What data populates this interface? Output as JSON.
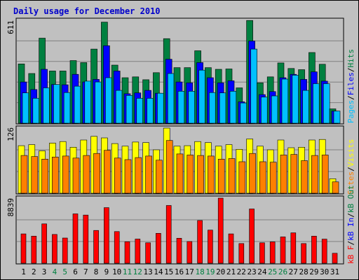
{
  "title": "Daily usage for December 2010",
  "colors": {
    "background": "#c0c0c0",
    "hits": "#008040",
    "files": "#0000ff",
    "pages": "#00c0ff",
    "visits": "#ffff00",
    "sites": "#ff8000",
    "kbin": "#ff0000",
    "kbout": "#0000ff",
    "weekend": "#008040",
    "weekday": "#000000"
  },
  "chart_data": [
    {
      "type": "bar",
      "panel": "hits",
      "ymax_label": "611",
      "ylim": [
        0,
        611
      ],
      "categories": [
        "1",
        "2",
        "3",
        "4",
        "5",
        "6",
        "7",
        "8",
        "9",
        "10",
        "11",
        "12",
        "13",
        "14",
        "15",
        "16",
        "17",
        "18",
        "19",
        "20",
        "21",
        "22",
        "23",
        "24",
        "25",
        "26",
        "27",
        "28",
        "29",
        "30",
        "31"
      ],
      "weekend_days": [
        "4",
        "5",
        "11",
        "12",
        "18",
        "19",
        "25",
        "26"
      ],
      "legend": [
        "Hits",
        "Files",
        "Pages"
      ],
      "series": [
        {
          "name": "Hits",
          "values": [
            352,
            295,
            505,
            310,
            310,
            372,
            360,
            440,
            600,
            345,
            270,
            275,
            258,
            300,
            502,
            330,
            330,
            430,
            330,
            320,
            322,
            210,
            610,
            240,
            275,
            358,
            325,
            318,
            420,
            350,
            85
          ]
        },
        {
          "name": "Files",
          "values": [
            245,
            200,
            320,
            230,
            228,
            290,
            245,
            260,
            460,
            310,
            175,
            180,
            195,
            178,
            380,
            245,
            240,
            360,
            270,
            240,
            252,
            127,
            488,
            170,
            188,
            270,
            290,
            260,
            305,
            250,
            72
          ]
        },
        {
          "name": "Pages",
          "values": [
            180,
            148,
            210,
            230,
            182,
            220,
            250,
            245,
            270,
            195,
            165,
            148,
            148,
            178,
            295,
            190,
            190,
            315,
            182,
            180,
            190,
            120,
            440,
            155,
            162,
            262,
            285,
            195,
            235,
            235,
            72
          ]
        }
      ]
    },
    {
      "type": "bar",
      "panel": "visits",
      "ymax_label": "126",
      "ylim": [
        0,
        126
      ],
      "legend": [
        "Visits",
        "Sites"
      ],
      "series": [
        {
          "name": "Visits",
          "values": [
            92,
            94,
            82,
            97,
            100,
            89,
            103,
            110,
            107,
            96,
            91,
            99,
            98,
            84,
            126,
            91,
            92,
            100,
            98,
            91,
            94,
            85,
            105,
            91,
            84,
            103,
            88,
            89,
            103,
            104,
            28
          ]
        },
        {
          "name": "Sites",
          "values": [
            73,
            71,
            66,
            70,
            72,
            68,
            73,
            77,
            83,
            68,
            65,
            69,
            72,
            64,
            102,
            76,
            74,
            73,
            72,
            66,
            67,
            61,
            77,
            61,
            60,
            74,
            75,
            63,
            73,
            74,
            22
          ]
        }
      ]
    },
    {
      "type": "bar",
      "panel": "kbytes",
      "ymax_label": "8839",
      "ylim": [
        0,
        8839
      ],
      "legend": [
        "KBytes",
        "In",
        "KBytes",
        "Out"
      ],
      "series": [
        {
          "name": "KBytes In",
          "values": [
            0,
            0,
            0,
            0,
            0,
            0,
            0,
            0,
            0,
            0,
            0,
            0,
            0,
            0,
            0,
            0,
            0,
            0,
            0,
            0,
            0,
            0,
            0,
            0,
            0,
            0,
            0,
            0,
            0,
            0,
            0
          ]
        },
        {
          "name": "KBytes Out",
          "values": [
            3986,
            3679,
            5341,
            3909,
            3424,
            6702,
            6539,
            4447,
            7551,
            4292,
            2916,
            3282,
            2773,
            4063,
            7837,
            3394,
            2943,
            5802,
            4498,
            8839,
            3986,
            2671,
            7367,
            2773,
            2896,
            3577,
            4128,
            2671,
            3679,
            3271,
            1347
          ]
        }
      ]
    }
  ]
}
